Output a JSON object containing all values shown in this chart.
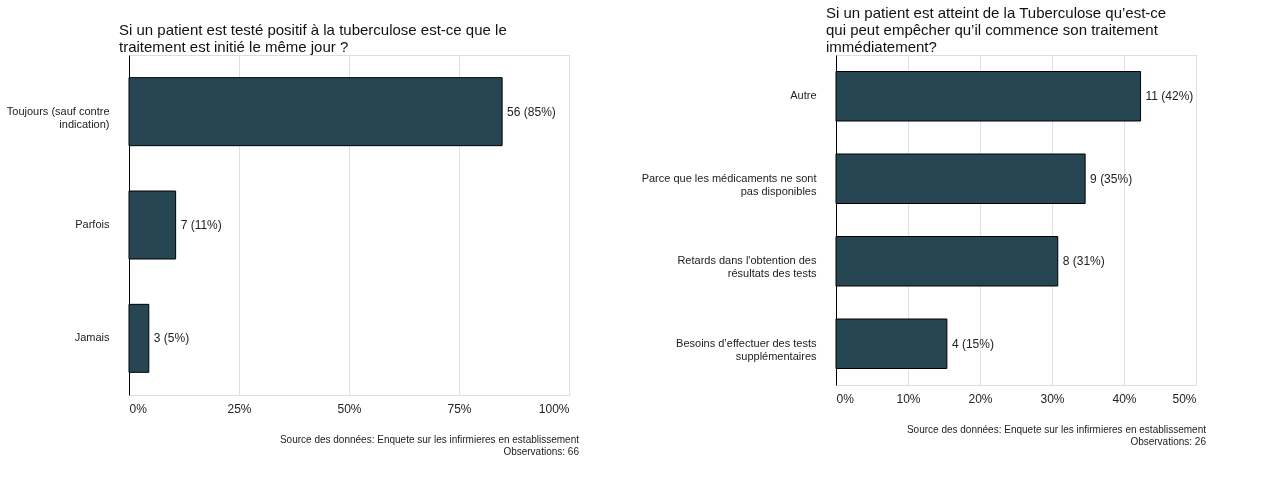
{
  "chart_data": [
    {
      "type": "bar",
      "orientation": "horizontal",
      "title": "Si un patient est testé positif à la tuberculose est-ce que le\ntraitement est initié le même jour ?",
      "categories": [
        "Toujours (sauf contre\nindication)",
        "Parfois",
        "Jamais"
      ],
      "values": [
        84.8,
        10.6,
        4.5
      ],
      "value_labels": [
        "56 (85%)",
        "7 (11%)",
        "3 (5%)"
      ],
      "color": "#264653",
      "xlim": [
        0,
        100
      ],
      "xticks": [
        {
          "value": 0,
          "label": "0%"
        },
        {
          "value": 25,
          "label": "25%"
        },
        {
          "value": 50,
          "label": "50%"
        },
        {
          "value": 75,
          "label": "75%"
        },
        {
          "value": 100,
          "label": "100%"
        }
      ],
      "grid": "x",
      "annotations": [
        "Source des données: Enquete sur les infirmieres en establissement",
        "Observations: 66"
      ]
    },
    {
      "type": "bar",
      "orientation": "horizontal",
      "title": "Si un patient est atteint de la Tuberculose qu’est-ce\nqui peut empêcher qu’il commence son traitement\nimmédiatement?",
      "categories": [
        "Autre",
        "Parce que les médicaments ne sont\npas disponibles",
        "Retards dans l'obtention des\nrésultats des tests",
        "Besoins d’effectuer des tests\nsupplémentaires"
      ],
      "values": [
        42.3,
        34.6,
        30.8,
        15.4
      ],
      "value_labels": [
        "11 (42%)",
        "9 (35%)",
        "8 (31%)",
        "4 (15%)"
      ],
      "color": "#264653",
      "xlim": [
        0,
        50
      ],
      "xticks": [
        {
          "value": 0,
          "label": "0%"
        },
        {
          "value": 10,
          "label": "10%"
        },
        {
          "value": 20,
          "label": "20%"
        },
        {
          "value": 30,
          "label": "30%"
        },
        {
          "value": 40,
          "label": "40%"
        },
        {
          "value": 50,
          "label": "50%"
        }
      ],
      "grid": "x",
      "annotations": [
        "Source des données: Enquete sur les infirmieres en establissement",
        "Observations: 26"
      ]
    }
  ]
}
